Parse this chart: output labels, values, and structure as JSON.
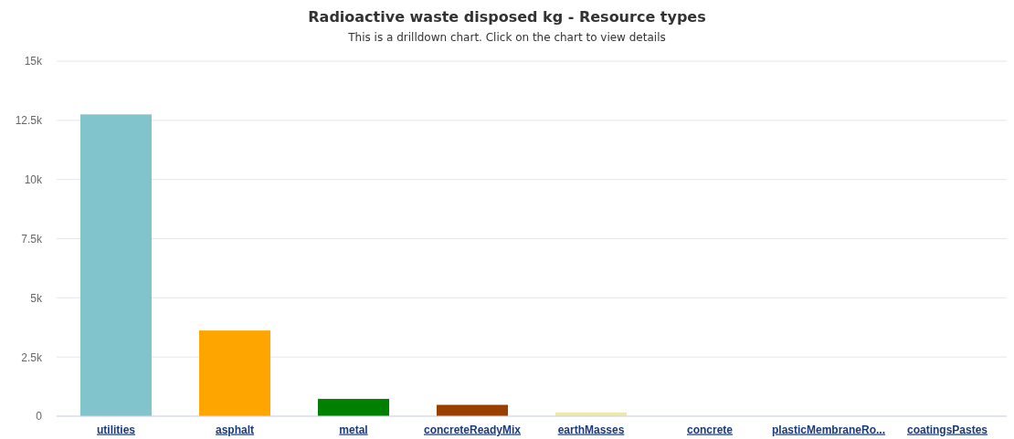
{
  "chart_data": {
    "type": "bar",
    "title": "Radioactive waste disposed kg - Resource types",
    "subtitle": "This is a drilldown chart. Click on the chart to view details",
    "categories": [
      "utilities",
      "asphalt",
      "metal",
      "concreteReadyMix",
      "earthMasses",
      "concrete",
      "plasticMembraneRo...",
      "coatingsPastes"
    ],
    "values": [
      12750,
      3620,
      730,
      480,
      160,
      0,
      0,
      0
    ],
    "colors": [
      "#82c4cc",
      "#ffa500",
      "#008000",
      "#994000",
      "#eee8aa",
      "#7cb5ec",
      "#434348",
      "#90ed7d"
    ],
    "ylim": [
      0,
      15000
    ],
    "yticks": [
      0,
      {
        "value": 2500,
        "label": "2.5k"
      },
      {
        "value": 5000,
        "label": "5k"
      },
      {
        "value": 7500,
        "label": "7.5k"
      },
      {
        "value": 10000,
        "label": "10k"
      },
      {
        "value": 12500,
        "label": "12.5k"
      },
      {
        "value": 15000,
        "label": "15k"
      }
    ],
    "grid": "y"
  }
}
